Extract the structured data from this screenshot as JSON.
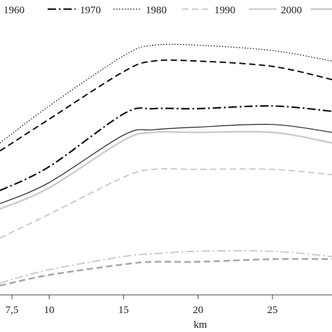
{
  "chart_data": {
    "type": "line",
    "xlabel": "km",
    "ylabel": "",
    "xlim": [
      6.7,
      29
    ],
    "ylim": [
      0,
      100
    ],
    "grid": false,
    "legend_position": "top",
    "y_axis_visible": false,
    "x_ticks": [
      {
        "value": 7.5,
        "label": "7,5"
      },
      {
        "value": 10,
        "label": "10"
      },
      {
        "value": 15,
        "label": "15"
      },
      {
        "value": 20,
        "label": "20"
      },
      {
        "value": 25,
        "label": "25"
      }
    ],
    "legend": [
      {
        "label": "1960",
        "style": "solid",
        "color": "#222222"
      },
      {
        "label": "1970",
        "style": "dashdot",
        "color": "#111111"
      },
      {
        "label": "1980",
        "style": "dotted",
        "color": "#111111"
      },
      {
        "label": "1990",
        "style": "dashed",
        "color": "#cccccc"
      },
      {
        "label": "2000",
        "style": "solid",
        "color": "#cccccc"
      }
    ],
    "series": [
      {
        "style": "dotted",
        "color": "#111111",
        "width": 1.2,
        "x": [
          6.7,
          10,
          15,
          17,
          20,
          25,
          29
        ],
        "y": [
          57,
          71,
          90,
          94,
          94,
          92,
          88
        ]
      },
      {
        "style": "dashed",
        "color": "#111111",
        "width": 2,
        "x": [
          6.7,
          10,
          15,
          17,
          20,
          25,
          29
        ],
        "y": [
          54,
          66,
          84,
          88,
          88,
          86,
          81
        ]
      },
      {
        "style": "dashdot",
        "color": "#111111",
        "width": 2.2,
        "x": [
          6.7,
          10,
          15,
          17,
          20,
          25,
          29
        ],
        "y": [
          39,
          48,
          68,
          70,
          70,
          71,
          69
        ]
      },
      {
        "style": "solid",
        "color": "#222222",
        "width": 1.2,
        "x": [
          6.7,
          10,
          15,
          17,
          20,
          25,
          29
        ],
        "y": [
          34,
          42,
          60,
          62,
          63,
          64,
          61
        ]
      },
      {
        "style": "solid",
        "color": "#cccccc",
        "width": 2.5,
        "x": [
          6.7,
          10,
          15,
          17,
          20,
          25,
          29
        ],
        "y": [
          32,
          40,
          58,
          61,
          61,
          61,
          57
        ]
      },
      {
        "style": "dashed",
        "color": "#cccccc",
        "width": 2,
        "x": [
          6.7,
          10,
          15,
          17,
          20,
          25,
          29
        ],
        "y": [
          21,
          30,
          44,
          47,
          47,
          47,
          45
        ]
      },
      {
        "style": "dashdot",
        "color": "#cccccc",
        "width": 2,
        "x": [
          6.7,
          10,
          15,
          17,
          20,
          25,
          29
        ],
        "y": [
          4,
          9,
          14,
          15,
          16,
          16,
          14
        ]
      },
      {
        "style": "dashed",
        "color": "#a6a6a6",
        "width": 2.5,
        "x": [
          6.7,
          10,
          15,
          17,
          20,
          25,
          29
        ],
        "y": [
          3,
          7,
          11,
          12,
          12,
          13,
          13
        ]
      }
    ]
  }
}
